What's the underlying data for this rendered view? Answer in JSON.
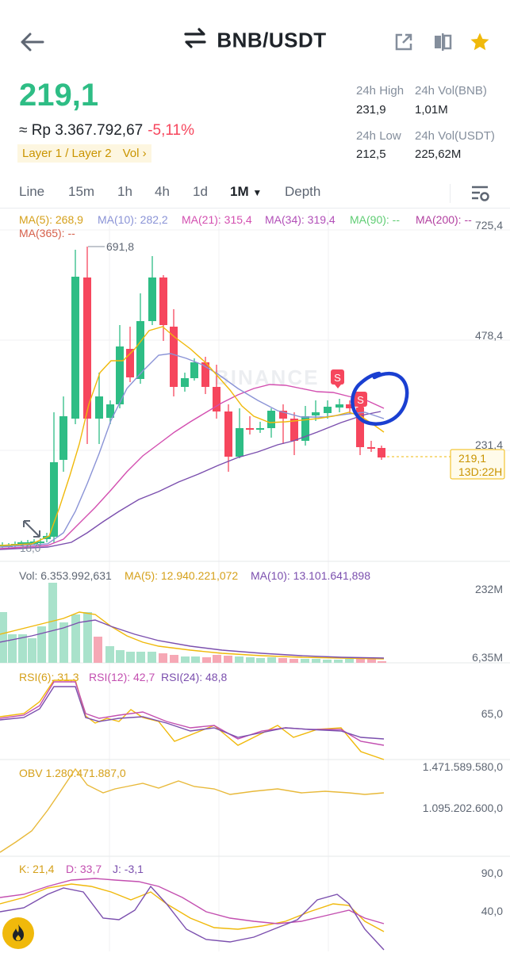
{
  "header": {
    "back_icon": "arrow-left-icon",
    "swap_icon": "swap-arrows-icon",
    "pair": "BNB/USDT",
    "share_icon": "share-icon",
    "compare_icon": "compare-icon",
    "favorite_icon": "star-icon"
  },
  "ticker": {
    "price": "219,1",
    "idr_prefix": "≈ Rp 3.367.792,67",
    "change": "-5,11%",
    "tags": "Layer 1 / Layer 2",
    "tag_vol": "Vol",
    "high_label": "24h High",
    "high_value": "231,9",
    "vol_bnb_label": "24h Vol(BNB)",
    "vol_bnb_value": "1,01M",
    "low_label": "24h Low",
    "low_value": "212,5",
    "vol_usdt_label": "24h Vol(USDT)",
    "vol_usdt_value": "225,62M"
  },
  "tabs": {
    "line": "Line",
    "m15": "15m",
    "h1": "1h",
    "h4": "4h",
    "d1": "1d",
    "month": "1M",
    "depth": "Depth",
    "settings_icon": "chart-settings-icon"
  },
  "main_chart": {
    "ma5": "MA(5): 268,9",
    "ma10": "MA(10): 282,2",
    "ma21": "MA(21): 315,4",
    "ma34": "MA(34): 319,4",
    "ma90": "MA(90): --",
    "ma200": "MA(200): --",
    "ma365": "MA(365): --",
    "axis_top": "725,4",
    "axis_mid": "478,4",
    "axis_low": "231,4",
    "high_marker": "691,8",
    "low_marker": "18,0",
    "last_price": "219,1",
    "countdown": "13D:22H",
    "sell_marker": "S",
    "watermark": "BINANCE",
    "colors": {
      "up": "#2ebd85",
      "down": "#f6465d",
      "ma5": "#f0b90b",
      "ma10": "#8a93d6",
      "ma21": "#d34fb0",
      "ma34": "#7b4fae",
      "circle": "#1a3fd1"
    }
  },
  "volume": {
    "vol": "Vol: 6.353.992,631",
    "ma5": "MA(5): 12.940.221,072",
    "ma10": "MA(10): 13.101.641,898",
    "axis_top": "232M",
    "axis_bottom": "6,35M"
  },
  "rsi": {
    "rsi6": "RSI(6): 31,3",
    "rsi12": "RSI(12): 42,7",
    "rsi24": "RSI(24): 48,8",
    "axis": "65,0"
  },
  "obv": {
    "label": "OBV 1.280.471.887,0",
    "axis_top": "1.471.589.580,0",
    "axis_mid": "1.095.202.600,0"
  },
  "kdj": {
    "k": "K: 21,4",
    "d": "D: 33,7",
    "j": "J: -3,1",
    "axis_top": "90,0",
    "axis_mid": "40,0"
  },
  "fab": {
    "icon": "flame-icon"
  }
}
